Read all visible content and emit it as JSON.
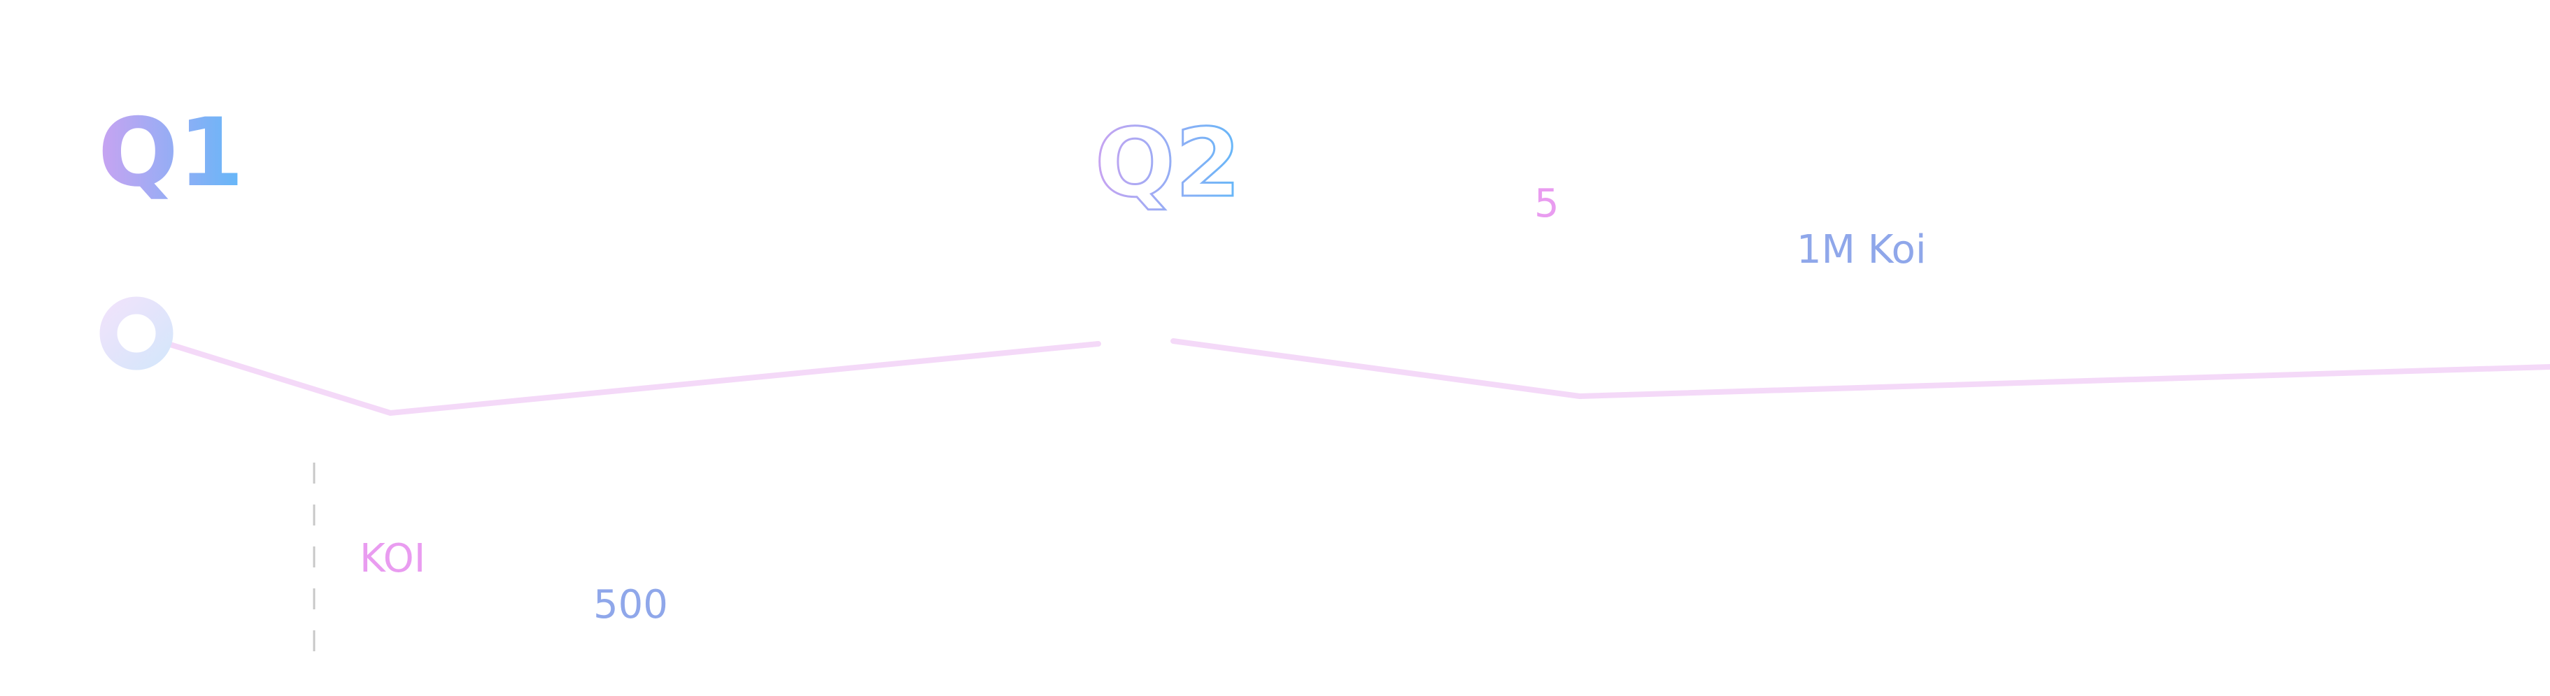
{
  "quarters": [
    {
      "label": "Q1",
      "style": "filled"
    },
    {
      "label": "Q2",
      "style": "outline"
    }
  ],
  "stats": {
    "q1_unit": "KOI",
    "q1_value": "500",
    "q2_value": "5",
    "q2_unit": "1M Koi"
  },
  "colors": {
    "gradient_start": "#c9a3f1",
    "gradient_end": "#63b7f8",
    "timeline_line": "#f4d9f8",
    "marker_ring": "#e4e8fb",
    "stat_pink": "#e99cf0",
    "stat_blue": "#8fa7ea",
    "dash_line": "#c8c8c8"
  }
}
